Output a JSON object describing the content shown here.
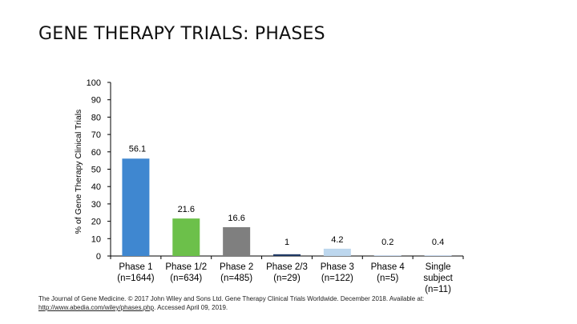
{
  "title": "GENE THERAPY TRIALS: PHASES",
  "colors": {
    "phase_1": "#3f87d0",
    "phase_1_2": "#6cc04a",
    "phase_2": "#7f7f7f",
    "phase_2_3": "#1f3864",
    "phase_3": "#bdd7ee",
    "phase_4": "#c9d9ee",
    "single_subject": "#c9d9ee",
    "axis": "#000000"
  },
  "chart_data": {
    "type": "bar",
    "ylabel": "% of Gene Therapy Clinical Trials",
    "ylim": [
      0,
      100
    ],
    "yticks": [
      0,
      10,
      20,
      30,
      40,
      50,
      60,
      70,
      80,
      90,
      100
    ],
    "grid": false,
    "categories": [
      [
        "Phase 1",
        "(n=1644)"
      ],
      [
        "Phase 1/2",
        "(n=634)"
      ],
      [
        "Phase 2",
        "(n=485)"
      ],
      [
        "Phase 2/3",
        "(n=29)"
      ],
      [
        "Phase 3",
        "(n=122)"
      ],
      [
        "Phase 4",
        "(n=5)"
      ],
      [
        "Single",
        "subject",
        "(n=11)"
      ]
    ],
    "values": [
      56.1,
      21.6,
      16.6,
      1,
      4.2,
      0.2,
      0.4
    ],
    "data_labels": [
      "56.1",
      "21.6",
      "16.6",
      "1",
      "4.2",
      "0.2",
      "0.4"
    ],
    "bar_color_keys": [
      "phase_1",
      "phase_1_2",
      "phase_2",
      "phase_2_3",
      "phase_3",
      "phase_4",
      "single_subject"
    ]
  },
  "source": {
    "text": "The Journal of Gene Medicine. © 2017 John Wiley and Sons Ltd. Gene Therapy Clinical Trials Worldwide. December 2018. Available at:",
    "link": "http://www.abedia.com/wiley/phases.php",
    "accessed": ". Accessed April 09, 2019."
  }
}
